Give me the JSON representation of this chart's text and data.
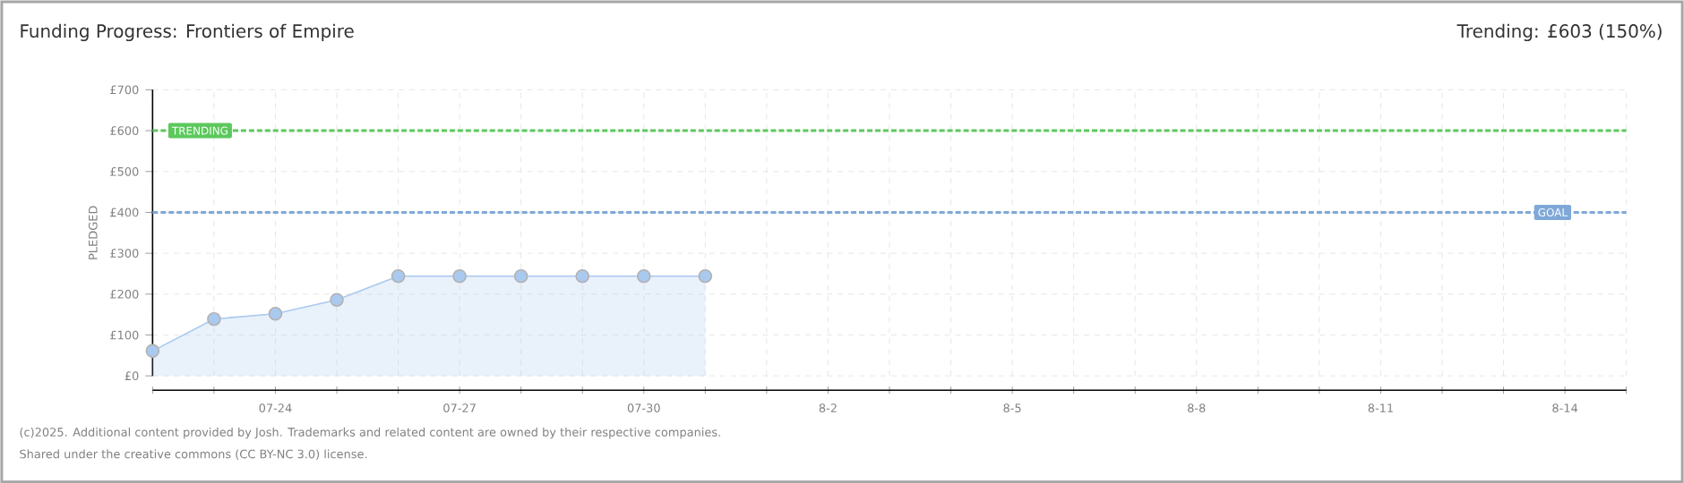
{
  "chart_data": {
    "type": "area",
    "title": "Funding Progress: Frontiers of Empire",
    "subtitle": "Trending: £603 (150%)",
    "ylabel": "PLEDGED",
    "x": [
      "2025-07-22",
      "2025-07-23",
      "2025-07-24",
      "2025-07-25",
      "2025-07-26",
      "2025-07-27",
      "2025-07-28",
      "2025-07-29",
      "2025-07-30",
      "2025-07-31"
    ],
    "series": [
      {
        "color": "#a9c9ef",
        "values": [
          61,
          139,
          152,
          186,
          244,
          244,
          244,
          244,
          244,
          244
        ]
      }
    ],
    "marker": "circle",
    "grid": true,
    "xlim": [
      "2025-07-22",
      "2025-08-15"
    ],
    "xticks": [
      {
        "value": "2025-07-22",
        "label": null
      },
      {
        "value": "2025-07-23",
        "label": null
      },
      {
        "value": "2025-07-24",
        "label": "07-24"
      },
      {
        "value": "2025-07-25",
        "label": null
      },
      {
        "value": "2025-07-26",
        "label": null
      },
      {
        "value": "2025-07-27",
        "label": "07-27"
      },
      {
        "value": "2025-07-28",
        "label": null
      },
      {
        "value": "2025-07-29",
        "label": null
      },
      {
        "value": "2025-07-30",
        "label": "07-30"
      },
      {
        "value": "2025-07-31",
        "label": null
      },
      {
        "value": "2025-08-01",
        "label": null
      },
      {
        "value": "2025-08-02",
        "label": "8-2"
      },
      {
        "value": "2025-08-03",
        "label": null
      },
      {
        "value": "2025-08-04",
        "label": null
      },
      {
        "value": "2025-08-05",
        "label": "8-5"
      },
      {
        "value": "2025-08-06",
        "label": null
      },
      {
        "value": "2025-08-07",
        "label": null
      },
      {
        "value": "2025-08-08",
        "label": "8-8"
      },
      {
        "value": "2025-08-09",
        "label": null
      },
      {
        "value": "2025-08-10",
        "label": null
      },
      {
        "value": "2025-08-11",
        "label": "8-11"
      },
      {
        "value": "2025-08-12",
        "label": null
      },
      {
        "value": "2025-08-13",
        "label": null
      },
      {
        "value": "2025-08-14",
        "label": "8-14"
      },
      {
        "value": "2025-08-15",
        "label": null
      }
    ],
    "ylim": [
      0,
      700
    ],
    "yticks": [
      {
        "value": 0,
        "label": "£0"
      },
      {
        "value": 100,
        "label": "£100"
      },
      {
        "value": 200,
        "label": "£200"
      },
      {
        "value": 300,
        "label": "£300"
      },
      {
        "value": 400,
        "label": "£400"
      },
      {
        "value": 500,
        "label": "£500"
      },
      {
        "value": 600,
        "label": "£600"
      },
      {
        "value": 700,
        "label": "£700"
      }
    ],
    "ref_lines": [
      {
        "axis": "y",
        "value": 600,
        "label": "TRENDING",
        "color": "#5cc85c",
        "line_style": "dashed"
      },
      {
        "axis": "y",
        "value": 400,
        "label": "GOAL",
        "color": "#7fa8d8",
        "line_style": "dashed"
      }
    ],
    "annotations": [
      "(c)2025. Additional content provided by Josh. Trademarks and related content are owned by their respective companies.",
      "Shared under the creative commons (CC BY-NC 3.0) license."
    ]
  }
}
